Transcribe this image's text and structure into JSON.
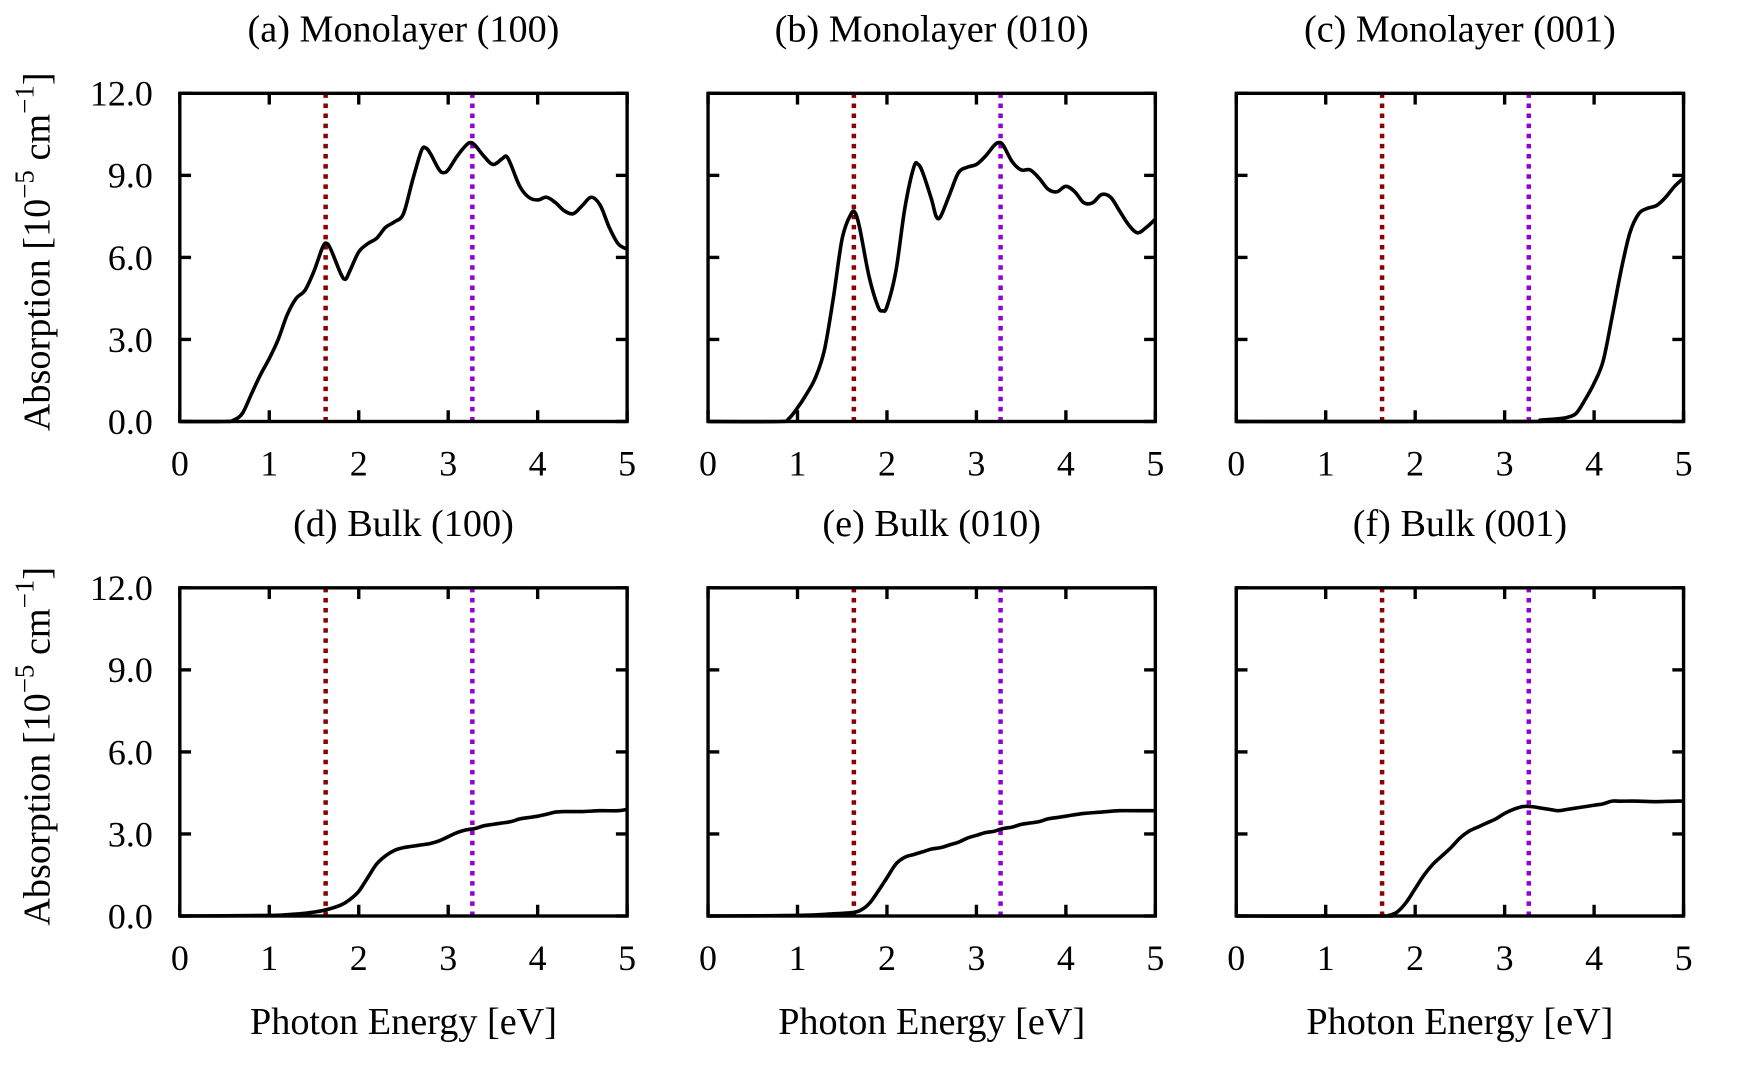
{
  "chart_data": {
    "type": "line",
    "ylabel": "Absorption [10^-5 cm^-1]",
    "ylabel_parts": {
      "main": "Absorption [10",
      "exp1": "−5",
      "mid": " cm",
      "exp2": "−1",
      "end": "]"
    },
    "xlabel": "Photon Energy [eV]",
    "xlim": [
      0,
      5
    ],
    "ylim": [
      0,
      12
    ],
    "xticks": [
      "0",
      "1",
      "2",
      "3",
      "4",
      "5"
    ],
    "yticks": [
      "0.0",
      "3.0",
      "6.0",
      "9.0",
      "12.0"
    ],
    "grid": false,
    "reference_lines": [
      {
        "x": 1.63,
        "color": "#8b0000",
        "style": "dotted"
      },
      {
        "x": 3.27,
        "color": "#9400d3",
        "style": "dotted"
      }
    ],
    "line_color": "#000000",
    "panels": [
      {
        "title": "(a) Monolayer (100)",
        "x": [
          0,
          0.5,
          0.6,
          0.7,
          0.8,
          0.9,
          1.0,
          1.1,
          1.2,
          1.3,
          1.4,
          1.5,
          1.6,
          1.65,
          1.7,
          1.8,
          1.85,
          1.9,
          2.0,
          2.1,
          2.2,
          2.3,
          2.4,
          2.5,
          2.6,
          2.7,
          2.75,
          2.8,
          2.9,
          2.95,
          3.0,
          3.1,
          3.2,
          3.25,
          3.3,
          3.4,
          3.5,
          3.6,
          3.65,
          3.7,
          3.8,
          3.9,
          4.0,
          4.1,
          4.2,
          4.3,
          4.4,
          4.5,
          4.6,
          4.7,
          4.8,
          4.9,
          5.0
        ],
        "y": [
          0,
          0,
          0.05,
          0.3,
          1.0,
          1.7,
          2.3,
          3.0,
          3.9,
          4.5,
          4.8,
          5.5,
          6.4,
          6.5,
          6.2,
          5.4,
          5.2,
          5.5,
          6.2,
          6.5,
          6.7,
          7.1,
          7.3,
          7.6,
          8.8,
          9.9,
          10.0,
          9.8,
          9.2,
          9.1,
          9.2,
          9.7,
          10.1,
          10.2,
          10.1,
          9.7,
          9.4,
          9.6,
          9.7,
          9.4,
          8.6,
          8.2,
          8.1,
          8.2,
          8.0,
          7.7,
          7.6,
          7.9,
          8.2,
          7.9,
          7.1,
          6.5,
          6.3
        ]
      },
      {
        "title": "(b) Monolayer (010)",
        "x": [
          0,
          0.8,
          0.9,
          1.0,
          1.1,
          1.2,
          1.3,
          1.4,
          1.5,
          1.6,
          1.65,
          1.7,
          1.8,
          1.9,
          1.95,
          2.0,
          2.1,
          2.2,
          2.3,
          2.35,
          2.4,
          2.5,
          2.55,
          2.6,
          2.7,
          2.8,
          2.9,
          3.0,
          3.1,
          3.2,
          3.25,
          3.3,
          3.4,
          3.5,
          3.6,
          3.7,
          3.8,
          3.9,
          4.0,
          4.1,
          4.2,
          4.3,
          4.4,
          4.5,
          4.6,
          4.7,
          4.8,
          4.9,
          5.0
        ],
        "y": [
          0,
          0,
          0.1,
          0.5,
          1.0,
          1.6,
          2.6,
          4.5,
          6.7,
          7.6,
          7.6,
          7.0,
          5.3,
          4.2,
          4.05,
          4.2,
          5.5,
          7.8,
          9.3,
          9.4,
          9.1,
          8.1,
          7.5,
          7.5,
          8.3,
          9.1,
          9.3,
          9.4,
          9.7,
          10.1,
          10.2,
          10.1,
          9.5,
          9.2,
          9.2,
          8.9,
          8.5,
          8.4,
          8.6,
          8.4,
          8.0,
          8.0,
          8.3,
          8.2,
          7.7,
          7.2,
          6.9,
          7.1,
          7.4
        ]
      },
      {
        "title": "(c) Monolayer (001)",
        "x": [
          0,
          3.2,
          3.4,
          3.6,
          3.7,
          3.8,
          3.9,
          4.0,
          4.1,
          4.2,
          4.3,
          4.4,
          4.5,
          4.6,
          4.7,
          4.8,
          4.9,
          5.0
        ],
        "y": [
          0,
          0,
          0.05,
          0.1,
          0.15,
          0.3,
          0.8,
          1.4,
          2.2,
          3.8,
          5.5,
          6.9,
          7.6,
          7.8,
          7.9,
          8.2,
          8.6,
          8.9
        ]
      },
      {
        "title": "(d) Bulk (100)",
        "x": [
          0,
          1.0,
          1.2,
          1.4,
          1.6,
          1.8,
          1.9,
          2.0,
          2.1,
          2.2,
          2.3,
          2.4,
          2.5,
          2.6,
          2.7,
          2.8,
          2.9,
          3.0,
          3.1,
          3.2,
          3.3,
          3.4,
          3.5,
          3.6,
          3.7,
          3.8,
          3.9,
          4.0,
          4.1,
          4.2,
          4.3,
          4.5,
          4.7,
          4.9,
          5.0
        ],
        "y": [
          0,
          0.02,
          0.05,
          0.1,
          0.2,
          0.4,
          0.6,
          0.9,
          1.4,
          1.9,
          2.2,
          2.4,
          2.5,
          2.55,
          2.6,
          2.65,
          2.75,
          2.9,
          3.05,
          3.15,
          3.2,
          3.3,
          3.35,
          3.4,
          3.45,
          3.55,
          3.6,
          3.65,
          3.72,
          3.8,
          3.82,
          3.82,
          3.85,
          3.85,
          3.9
        ]
      },
      {
        "title": "(e) Bulk (010)",
        "x": [
          0,
          1.0,
          1.4,
          1.6,
          1.7,
          1.8,
          1.9,
          2.0,
          2.1,
          2.2,
          2.3,
          2.4,
          2.5,
          2.6,
          2.7,
          2.8,
          2.9,
          3.0,
          3.1,
          3.2,
          3.3,
          3.4,
          3.5,
          3.6,
          3.7,
          3.8,
          3.9,
          4.0,
          4.2,
          4.4,
          4.6,
          4.8,
          5.0
        ],
        "y": [
          0,
          0.02,
          0.08,
          0.12,
          0.2,
          0.45,
          0.9,
          1.4,
          1.9,
          2.15,
          2.25,
          2.35,
          2.45,
          2.5,
          2.6,
          2.7,
          2.85,
          2.95,
          3.05,
          3.1,
          3.2,
          3.25,
          3.35,
          3.4,
          3.45,
          3.55,
          3.6,
          3.65,
          3.75,
          3.8,
          3.85,
          3.85,
          3.85
        ]
      },
      {
        "title": "(f) Bulk (001)",
        "x": [
          0,
          1.6,
          1.7,
          1.8,
          1.9,
          2.0,
          2.1,
          2.2,
          2.3,
          2.4,
          2.5,
          2.6,
          2.7,
          2.8,
          2.9,
          3.0,
          3.1,
          3.2,
          3.3,
          3.4,
          3.5,
          3.6,
          3.7,
          3.8,
          3.9,
          4.0,
          4.1,
          4.2,
          4.3,
          4.5,
          4.7,
          4.9,
          5.0
        ],
        "y": [
          0,
          0,
          0.02,
          0.15,
          0.5,
          1.0,
          1.5,
          1.9,
          2.2,
          2.5,
          2.85,
          3.1,
          3.25,
          3.4,
          3.55,
          3.75,
          3.9,
          4.0,
          4.0,
          3.95,
          3.9,
          3.85,
          3.9,
          3.95,
          4.0,
          4.05,
          4.1,
          4.2,
          4.2,
          4.2,
          4.18,
          4.2,
          4.2
        ]
      }
    ]
  }
}
